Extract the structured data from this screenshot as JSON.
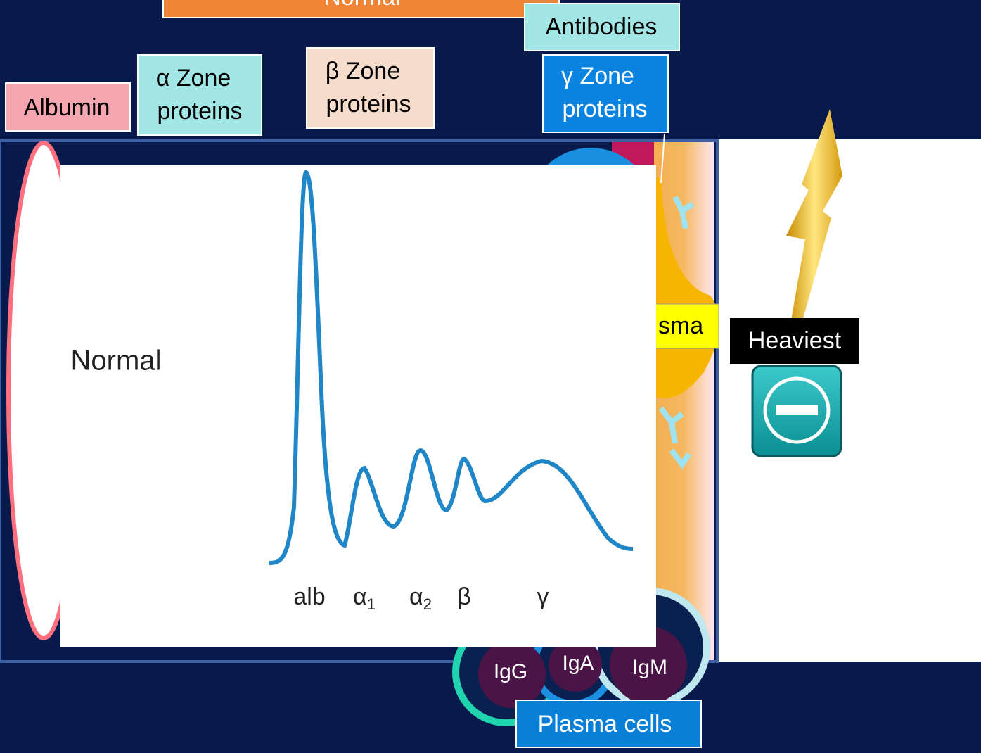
{
  "header": {
    "title": "Normal"
  },
  "labels": {
    "albumin": "Albumin",
    "alpha_zone": [
      "α Zone",
      "proteins"
    ],
    "beta_zone": [
      "β Zone",
      "proteins"
    ],
    "antibodies": "Antibodies",
    "gamma_zone": [
      "γ Zone",
      "proteins"
    ],
    "plasma": "sma",
    "heaviest": "Heaviest",
    "plasma_cells": "Plasma cells"
  },
  "cells": [
    "IgG",
    "IgA",
    "IgM"
  ],
  "electrophoresis": {
    "title": "Normal",
    "x_labels": [
      {
        "symbol": "alb"
      },
      {
        "symbol": "α",
        "sub": "1"
      },
      {
        "symbol": "α",
        "sub": "2"
      },
      {
        "symbol": "β"
      },
      {
        "symbol": "γ"
      }
    ]
  }
}
